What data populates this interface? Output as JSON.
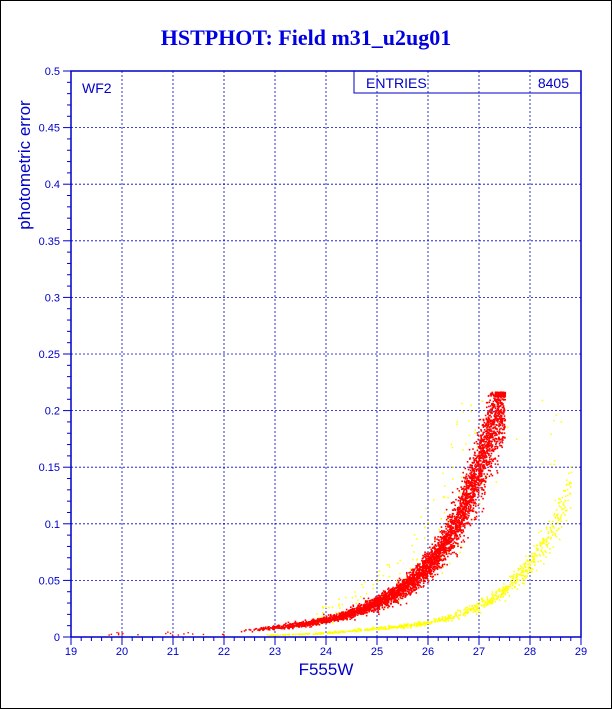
{
  "title": "HSTPHOT: Field m31_u2ug01",
  "chart_data": {
    "type": "scatter",
    "title": "HSTPHOT: Field m31_u2ug01",
    "xlabel": "F555W",
    "ylabel": "photometric error",
    "xlim": [
      19,
      29
    ],
    "ylim": [
      0,
      0.5
    ],
    "x_ticks": [
      "19",
      "20",
      "21",
      "22",
      "23",
      "24",
      "25",
      "26",
      "27",
      "28",
      "29"
    ],
    "y_ticks": [
      "0",
      "0.05",
      "0.1",
      "0.15",
      "0.2",
      "0.25",
      "0.3",
      "0.35",
      "0.4",
      "0.45",
      "0.5"
    ],
    "grid": true,
    "annotation": "WF2",
    "stats": {
      "label": "ENTRIES",
      "value": "8405"
    },
    "series": [
      {
        "color": "#ffff00",
        "description_points": [
          [
            22.8,
            0.002
          ],
          [
            23.5,
            0.003
          ],
          [
            24.0,
            0.004
          ],
          [
            24.5,
            0.006
          ],
          [
            25.0,
            0.008
          ],
          [
            25.5,
            0.01
          ],
          [
            26.0,
            0.013
          ],
          [
            26.5,
            0.019
          ],
          [
            27.0,
            0.028
          ],
          [
            27.5,
            0.042
          ],
          [
            28.0,
            0.065
          ],
          [
            28.5,
            0.1
          ],
          [
            28.8,
            0.14
          ]
        ]
      },
      {
        "color": "#ff0000",
        "description_points": [
          [
            22.3,
            0.006
          ],
          [
            22.8,
            0.008
          ],
          [
            23.2,
            0.01
          ],
          [
            23.7,
            0.013
          ],
          [
            24.2,
            0.018
          ],
          [
            24.7,
            0.025
          ],
          [
            25.2,
            0.035
          ],
          [
            25.7,
            0.05
          ],
          [
            26.2,
            0.075
          ],
          [
            26.6,
            0.105
          ],
          [
            26.9,
            0.14
          ],
          [
            27.2,
            0.18
          ],
          [
            27.5,
            0.217
          ]
        ]
      }
    ]
  }
}
